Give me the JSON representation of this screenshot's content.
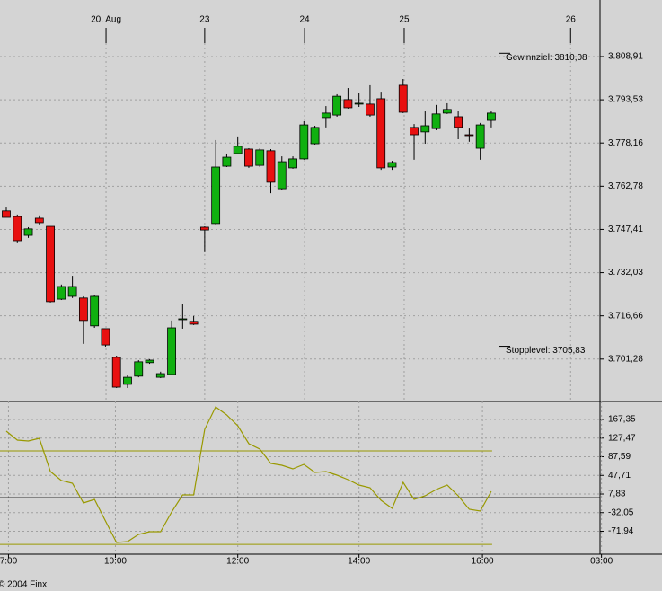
{
  "chart_data": [
    {
      "type": "candlestick",
      "x": [
        0,
        1,
        2,
        3,
        4,
        5,
        6,
        7,
        8,
        9,
        10,
        11,
        12,
        13,
        14,
        15,
        16,
        17,
        18,
        19,
        20,
        21,
        22,
        23,
        24,
        25,
        26,
        27,
        28,
        29,
        30,
        31,
        32,
        33,
        34,
        35,
        36,
        37,
        38,
        39,
        40,
        41,
        42,
        43,
        44
      ],
      "open": [
        3754.0,
        3752.0,
        3745.3,
        3751.4,
        3748.5,
        3722.6,
        3723.6,
        3723.0,
        3713.1,
        3712.1,
        3701.9,
        3692.3,
        3695.2,
        3700.0,
        3694.8,
        3695.8,
        3715.3,
        3714.7,
        3748.2,
        3749.5,
        3769.9,
        3774.4,
        3776.0,
        3770.2,
        3775.4,
        3761.9,
        3769.3,
        3772.5,
        3777.9,
        3787.2,
        3788.1,
        3793.6,
        3792.0,
        3792.0,
        3793.9,
        3769.6,
        3798.7,
        3783.7,
        3782.1,
        3783.3,
        3788.8,
        3787.5,
        3781.1,
        3776.3,
        3786.2
      ],
      "high": [
        3755.2,
        3752.7,
        3748.2,
        3752.4,
        3748.5,
        3727.8,
        3730.9,
        3723.6,
        3724.2,
        3712.1,
        3702.5,
        3695.5,
        3700.9,
        3701.2,
        3696.8,
        3715.0,
        3721.0,
        3716.6,
        3748.5,
        3779.2,
        3774.4,
        3780.5,
        3776.3,
        3776.3,
        3776.0,
        3773.4,
        3773.4,
        3785.9,
        3784.3,
        3791.3,
        3795.5,
        3797.7,
        3796.1,
        3798.7,
        3796.4,
        3771.8,
        3800.9,
        3784.9,
        3789.4,
        3791.7,
        3792.3,
        3789.4,
        3783.3,
        3785.3,
        3789.4
      ],
      "low": [
        3751.7,
        3742.8,
        3744.4,
        3749.2,
        3721.4,
        3722.3,
        3723.0,
        3706.7,
        3712.4,
        3705.7,
        3691.0,
        3691.0,
        3694.8,
        3699.6,
        3694.5,
        3695.5,
        3712.1,
        3713.4,
        3739.3,
        3749.2,
        3769.6,
        3774.1,
        3769.3,
        3769.6,
        3760.3,
        3761.3,
        3769.0,
        3772.2,
        3777.6,
        3783.7,
        3787.5,
        3790.4,
        3791.0,
        3787.5,
        3768.6,
        3768.6,
        3788.8,
        3772.2,
        3777.9,
        3782.7,
        3788.5,
        3779.5,
        3778.6,
        3772.2,
        3783.7
      ],
      "close": [
        3751.7,
        3743.4,
        3747.6,
        3749.8,
        3721.7,
        3727.1,
        3727.1,
        3715.0,
        3723.6,
        3706.3,
        3691.3,
        3694.8,
        3700.3,
        3700.9,
        3696.1,
        3712.4,
        3715.6,
        3713.7,
        3747.2,
        3769.6,
        3773.1,
        3777.0,
        3769.9,
        3775.7,
        3764.2,
        3771.5,
        3772.5,
        3784.6,
        3783.7,
        3788.8,
        3794.8,
        3790.7,
        3792.3,
        3788.1,
        3769.3,
        3771.2,
        3789.1,
        3781.1,
        3784.3,
        3788.5,
        3790.1,
        3783.7,
        3780.8,
        3784.6,
        3788.8
      ],
      "up_color": "#10b010",
      "down_color": "#e81010",
      "xlim": [
        -0.57,
        54.03
      ],
      "ylim": [
        3686.2,
        3829.03
      ],
      "yticks": [
        {
          "value": 3808.91,
          "label": "3.808,91"
        },
        {
          "value": 3793.53,
          "label": "3.793,53"
        },
        {
          "value": 3778.16,
          "label": "3.778,16"
        },
        {
          "value": 3762.78,
          "label": "3.762,78"
        },
        {
          "value": 3747.41,
          "label": "3.747,41"
        },
        {
          "value": 3732.03,
          "label": "3.732,03"
        },
        {
          "value": 3716.66,
          "label": "3.716,66"
        },
        {
          "value": 3701.28,
          "label": "3.701,28"
        }
      ],
      "xticks": [
        {
          "value": 9.05,
          "label": "20. Aug"
        },
        {
          "value": 18,
          "label": "23"
        },
        {
          "value": 27.06,
          "label": "24"
        },
        {
          "value": 36.1,
          "label": "25"
        },
        {
          "value": 51.2,
          "label": "26"
        }
      ],
      "grid": true,
      "annotations": [
        {
          "value": 3810.08,
          "label": "Gewinnziel: 3810,08"
        },
        {
          "value": 3705.83,
          "label": "Stopplevel: 3705,83"
        }
      ]
    },
    {
      "type": "line",
      "x": [
        0,
        1,
        2,
        3,
        4,
        5,
        6,
        7,
        8,
        9,
        10,
        11,
        12,
        13,
        14,
        15,
        16,
        17,
        18,
        19,
        20,
        21,
        22,
        23,
        24,
        25,
        26,
        27,
        28,
        29,
        30,
        31,
        32,
        33,
        34,
        35,
        36,
        37,
        38,
        39,
        40,
        41,
        42,
        43,
        44
      ],
      "values": [
        142.4,
        123.2,
        121.2,
        127.0,
        55.9,
        36.7,
        30.9,
        -11.4,
        -3.7,
        -49.8,
        -96.0,
        -94.0,
        -78.7,
        -72.9,
        -72.9,
        -30.6,
        5.9,
        5.9,
        146.2,
        194.3,
        177.0,
        153.9,
        115.5,
        103.9,
        73.2,
        69.3,
        61.7,
        71.3,
        54.0,
        55.9,
        48.2,
        38.6,
        27.1,
        21.3,
        -5.6,
        -22.9,
        32.8,
        -3.7,
        4.0,
        17.4,
        27.1,
        4.0,
        -24.8,
        -28.7,
        13.6
      ],
      "color": "#999900",
      "xlim": [
        -0.57,
        54.03
      ],
      "ylim": [
        -120.9,
        205.8
      ],
      "yticks": [
        {
          "value": 167.35,
          "label": "167,35"
        },
        {
          "value": 127.47,
          "label": "127,47"
        },
        {
          "value": 87.59,
          "label": "87,59"
        },
        {
          "value": 47.71,
          "label": "47,71"
        },
        {
          "value": 7.83,
          "label": "7,83"
        },
        {
          "value": -32.05,
          "label": "-32,05"
        },
        {
          "value": -71.94,
          "label": "-71,94"
        }
      ],
      "xticks": [
        {
          "value": 0.2,
          "label": "7:00"
        },
        {
          "value": 9.9,
          "label": "10:00"
        },
        {
          "value": 21,
          "label": "12:00"
        },
        {
          "value": 32,
          "label": "14:00"
        },
        {
          "value": 43.2,
          "label": "16:00"
        },
        {
          "value": 54,
          "label": "03:00"
        }
      ],
      "grid": true,
      "reference_lines": [
        100,
        -100
      ]
    }
  ],
  "footer": "© 2004 Finx"
}
